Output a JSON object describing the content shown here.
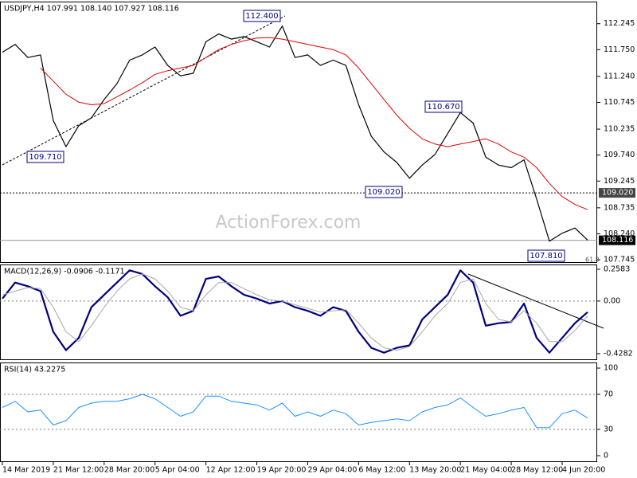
{
  "chart_data": [
    {
      "type": "line",
      "title": "USDJPY,H4  107.991 108.140 107.927 108.116",
      "ylim": [
        107.685,
        112.666
      ],
      "yticks": [
        112.245,
        {
          "value": 111.75,
          "label": "111.750"
        },
        {
          "value": 111.24,
          "label": "111.240"
        },
        110.745,
        110.235,
        {
          "value": 109.74,
          "label": "109.740"
        },
        109.245,
        108.735,
        {
          "value": 108.24,
          "label": "108.240"
        },
        107.745
      ],
      "series": [
        {
          "color": "#000000",
          "values": [
            111.7,
            111.85,
            111.6,
            111.65,
            110.4,
            109.9,
            110.3,
            110.45,
            110.8,
            111.1,
            111.55,
            111.65,
            111.8,
            111.45,
            111.25,
            111.3,
            111.9,
            112.05,
            111.95,
            112.0,
            111.9,
            111.8,
            112.2,
            111.6,
            111.65,
            111.45,
            111.55,
            111.45,
            110.7,
            110.1,
            109.8,
            109.6,
            109.3,
            109.55,
            109.75,
            110.15,
            110.55,
            110.35,
            109.7,
            109.55,
            109.5,
            109.65,
            108.9,
            108.1,
            108.25,
            108.35,
            108.12
          ]
        },
        {
          "color": "#e00000",
          "values": [
            null,
            null,
            null,
            111.4,
            111.15,
            110.9,
            110.75,
            110.7,
            110.72,
            110.85,
            110.98,
            111.12,
            111.28,
            111.35,
            111.4,
            111.45,
            111.6,
            111.75,
            111.85,
            111.92,
            111.97,
            111.98,
            111.95,
            111.9,
            111.85,
            111.8,
            111.75,
            111.65,
            111.4,
            111.1,
            110.8,
            110.5,
            110.25,
            110.05,
            109.95,
            109.9,
            109.95,
            110.0,
            110.05,
            109.95,
            109.8,
            109.7,
            109.5,
            109.2,
            108.95,
            108.8,
            108.7
          ]
        }
      ],
      "markers": [
        {
          "value": 109.02,
          "label": "109.020"
        },
        {
          "value": 108.116,
          "label": "108.116"
        }
      ],
      "annotations": [
        "112.400",
        "109.710",
        "110.670",
        "109.020",
        "107.810",
        "61.8"
      ],
      "watermark": "ActionForex.com"
    },
    {
      "type": "line",
      "title": "MACD(12,26,9) -0.0906 -0.1171",
      "ylim": [
        -0.48,
        0.297
      ],
      "yticks": [
        0.2583,
        {
          "value": 0,
          "label": "0.00"
        },
        -0.4282
      ],
      "levels": [
        0
      ],
      "series": [
        {
          "color": "#000080",
          "values": [
            0.02,
            0.15,
            0.12,
            0.08,
            -0.25,
            -0.4,
            -0.3,
            -0.05,
            0.05,
            0.15,
            0.25,
            0.22,
            0.12,
            0.03,
            -0.12,
            -0.08,
            0.18,
            0.2,
            0.12,
            0.05,
            0.02,
            -0.02,
            0.0,
            -0.05,
            -0.08,
            -0.12,
            -0.05,
            -0.08,
            -0.25,
            -0.38,
            -0.42,
            -0.38,
            -0.36,
            -0.15,
            -0.05,
            0.05,
            0.25,
            0.15,
            -0.2,
            -0.18,
            -0.17,
            -0.02,
            -0.3,
            -0.42,
            -0.3,
            -0.18,
            -0.09
          ]
        },
        {
          "color": "#a8a8a8",
          "values": [
            0.05,
            0.08,
            0.11,
            0.1,
            -0.05,
            -0.25,
            -0.33,
            -0.2,
            -0.05,
            0.08,
            0.18,
            0.22,
            0.18,
            0.08,
            -0.05,
            -0.08,
            0.05,
            0.15,
            0.15,
            0.1,
            0.05,
            0.01,
            0.0,
            -0.03,
            -0.06,
            -0.09,
            -0.08,
            -0.07,
            -0.18,
            -0.3,
            -0.38,
            -0.4,
            -0.37,
            -0.25,
            -0.12,
            -0.02,
            0.15,
            0.18,
            -0.02,
            -0.15,
            -0.17,
            -0.08,
            -0.18,
            -0.33,
            -0.33,
            -0.24,
            -0.12
          ]
        }
      ]
    },
    {
      "type": "line",
      "title": "RSI(14) 43.2275",
      "ylim": [
        -7.3,
        106.4
      ],
      "yticks": [
        100,
        70,
        30,
        0
      ],
      "levels": [
        70,
        30
      ],
      "categories": [
        "14 Mar 2019",
        null,
        null,
        null,
        "21 Mar 12:00",
        null,
        null,
        null,
        "28 Mar 20:00",
        null,
        null,
        null,
        "5 Apr 04:00",
        null,
        null,
        null,
        "12 Apr 12:00",
        null,
        null,
        null,
        "19 Apr 20:00",
        null,
        null,
        null,
        "29 Apr 04:00",
        null,
        null,
        null,
        "6 May 12:00",
        null,
        null,
        null,
        "13 May 20:00",
        null,
        null,
        null,
        "21 May 04:00",
        null,
        null,
        null,
        "28 May 12:00",
        null,
        null,
        null,
        "4 Jun 20:00",
        null,
        null
      ],
      "series": [
        {
          "color": "#1e90ff",
          "values": [
            55,
            62,
            50,
            52,
            35,
            40,
            55,
            60,
            62,
            62,
            65,
            70,
            65,
            55,
            45,
            50,
            68,
            68,
            62,
            60,
            58,
            52,
            60,
            45,
            50,
            45,
            52,
            48,
            35,
            38,
            40,
            42,
            40,
            50,
            55,
            58,
            66,
            55,
            45,
            48,
            52,
            55,
            32,
            32,
            48,
            52,
            43
          ]
        }
      ]
    }
  ]
}
